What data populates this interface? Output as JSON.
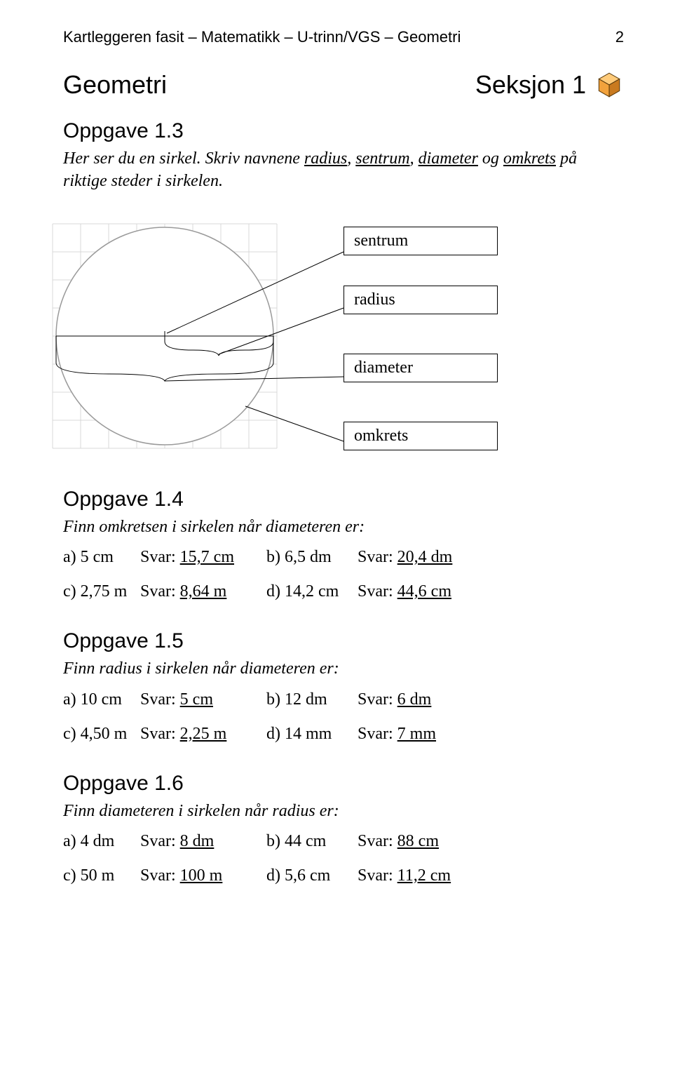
{
  "header": {
    "left": "Kartleggeren fasit – Matematikk – U-trinn/VGS – Geometri",
    "page_number": "2"
  },
  "section": {
    "title": "Geometri",
    "label": "Seksjon 1",
    "title_fontsize": 36,
    "title_font": "Arial"
  },
  "cube": {
    "front_color": "#f2a23c",
    "side_color": "#c97a1f",
    "top_color": "#ffcb7a",
    "stroke": "#5a3a0b"
  },
  "task_1_3": {
    "heading": "Oppgave 1.3",
    "desc_prefix": "Her ser du en sirkel. Skriv navnene ",
    "term1": "radius",
    "sep1": ", ",
    "term2": "sentrum",
    "sep2": ", ",
    "term3": "diameter",
    "sep3": " og ",
    "term4": "omkrets",
    "desc_suffix": " på riktige steder i sirkelen.",
    "labels": {
      "sentrum": "sentrum",
      "radius": "radius",
      "diameter": "diameter",
      "omkrets": "omkrets"
    },
    "diagram": {
      "grid_cells": 8,
      "cell_size": 40,
      "grid_color": "#d9d9d9",
      "circle_stroke": "#9a9a9a",
      "background": "#ffffff"
    }
  },
  "task_1_4": {
    "heading": "Oppgave 1.4",
    "desc": "Finn omkretsen i sirkelen når diameteren er:",
    "answers": [
      {
        "q": "a) 5 cm",
        "a_prefix": "Svar: ",
        "a_val": "15,7 cm",
        "q2": "b) 6,5 dm",
        "a2_prefix": "Svar: ",
        "a2_val": "20,4 dm"
      },
      {
        "q": "c) 2,75 m",
        "a_prefix": "Svar: ",
        "a_val": "8,64 m",
        "q2": "d) 14,2 cm",
        "a2_prefix": "Svar: ",
        "a2_val": "44,6 cm"
      }
    ]
  },
  "task_1_5": {
    "heading": "Oppgave 1.5",
    "desc": "Finn radius i sirkelen når diameteren er:",
    "answers": [
      {
        "q": "a) 10 cm",
        "a_prefix": "Svar: ",
        "a_val": "5 cm",
        "q2": "b) 12 dm",
        "a2_prefix": "Svar: ",
        "a2_val": "6 dm"
      },
      {
        "q": "c) 4,50 m",
        "a_prefix": "Svar: ",
        "a_val": "2,25 m",
        "q2": "d) 14 mm",
        "a2_prefix": "Svar: ",
        "a2_val": "7 mm"
      }
    ]
  },
  "task_1_6": {
    "heading": "Oppgave 1.6",
    "desc": "Finn diameteren i sirkelen når radius er:",
    "answers": [
      {
        "q": "a) 4 dm",
        "a_prefix": "Svar: ",
        "a_val": "8 dm",
        "q2": "b) 44 cm",
        "a2_prefix": "Svar: ",
        "a2_val": "88 cm"
      },
      {
        "q": "c) 50 m",
        "a_prefix": "Svar: ",
        "a_val": "100 m",
        "q2": "d) 5,6 cm",
        "a2_prefix": "Svar: ",
        "a2_val": "11,2 cm"
      }
    ]
  }
}
